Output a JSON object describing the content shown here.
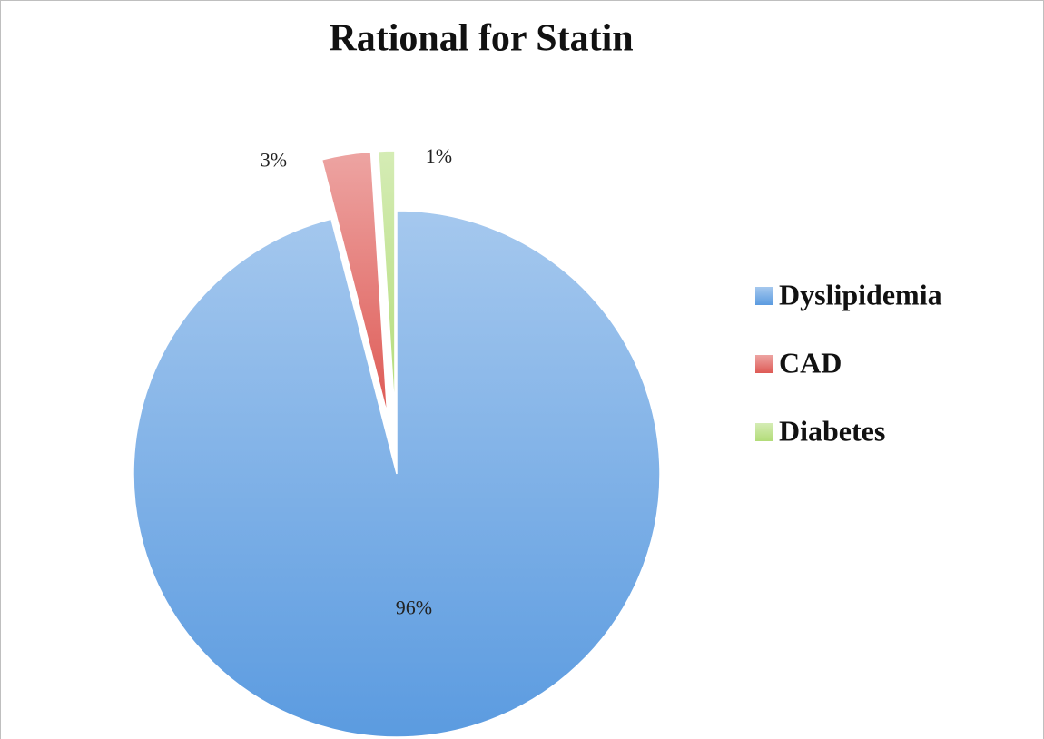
{
  "chart_data": {
    "type": "pie",
    "title": "Rational for Statin",
    "categories": [
      "Dyslipidemia",
      "CAD",
      "Diabetes"
    ],
    "values": [
      96,
      3,
      1
    ],
    "value_labels": [
      "96%",
      "3%",
      "1%"
    ],
    "colors": [
      "#5b9be0",
      "#de5a55",
      "#b2dc78"
    ],
    "exploded": [
      false,
      true,
      true
    ],
    "legend": "right"
  }
}
